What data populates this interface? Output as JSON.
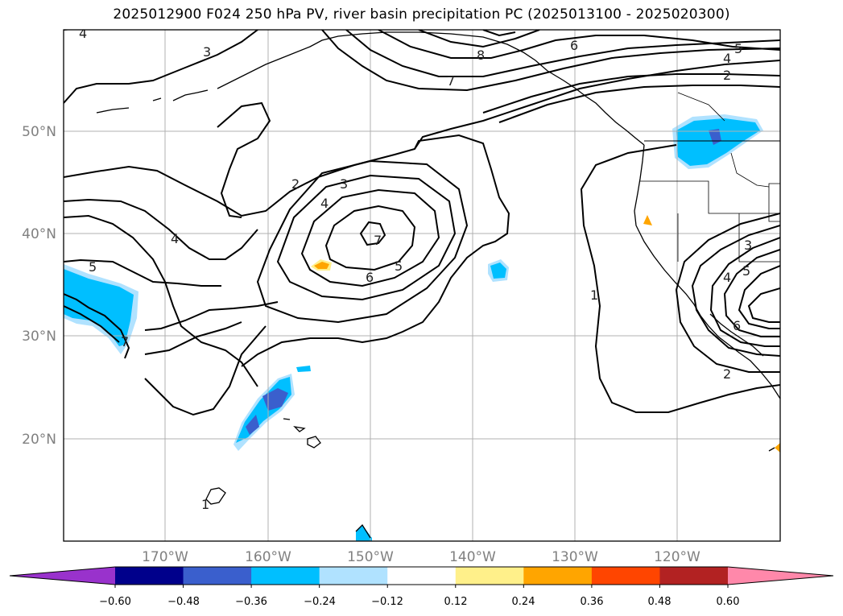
{
  "title": "2025012900 F024 250 hPa PV, river basin precipitation PC (2025013100 - 2025020300)",
  "map": {
    "lon_range": [
      -180,
      -110
    ],
    "lat_range": [
      10,
      60
    ],
    "lat_labels": [
      "20°N",
      "30°N",
      "40°N",
      "50°N"
    ],
    "lon_labels": [
      "170°W",
      "160°W",
      "150°W",
      "140°W",
      "130°W",
      "120°W"
    ],
    "contour_labels": [
      "4",
      "3",
      "8",
      "6",
      "5",
      "4",
      "2",
      "7",
      "2",
      "3",
      "4",
      "4",
      "5",
      "7",
      "6",
      "5",
      "1",
      "3",
      "4",
      "5",
      "6",
      "2",
      "7",
      "1"
    ],
    "field": "250 hPa PV",
    "shading": "river basin precipitation PC"
  },
  "colorbar": {
    "extend": "both",
    "tick_labels": [
      "−0.60",
      "−0.48",
      "−0.36",
      "−0.24",
      "−0.12",
      "0.12",
      "0.24",
      "0.36",
      "0.48",
      "0.60"
    ],
    "colors": [
      "#9932cc",
      "#00008b",
      "#3a5fcd",
      "#00bfff",
      "#b0e2ff",
      "#ffffff",
      "#fff08a",
      "#ffa500",
      "#ff4500",
      "#b22222",
      "#ff88aa"
    ]
  }
}
